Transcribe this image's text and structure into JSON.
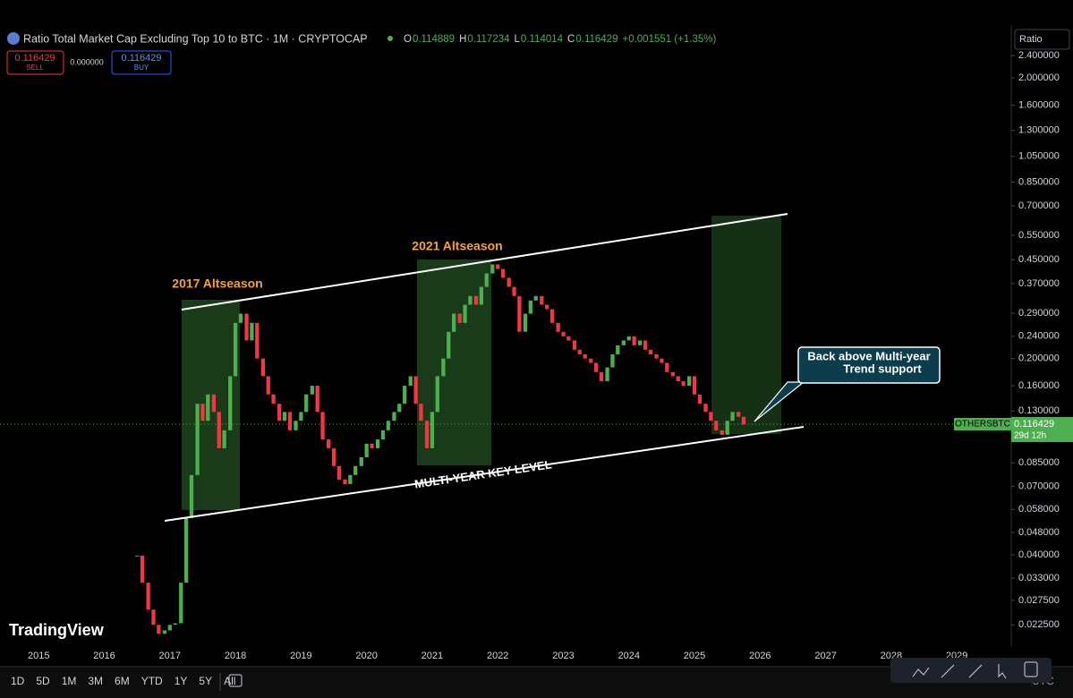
{
  "header": {
    "title": "Ratio Total Market Cap Excluding Top 10 to BTC · 1M · CRYPTOCAP",
    "ohlc": [
      {
        "label": "O",
        "value": "0.114889"
      },
      {
        "label": "H",
        "value": "0.117234"
      },
      {
        "label": "L",
        "value": "0.114014"
      },
      {
        "label": "C",
        "value": "0.116429"
      }
    ],
    "change": "+0.001551 (+1.35%)",
    "sell": {
      "price": "0.116429",
      "label": "SELL"
    },
    "spread": "0.000000",
    "buy": {
      "price": "0.116429",
      "label": "BUY"
    },
    "scale_button": "Ratio"
  },
  "chart_data": {
    "type": "candlestick",
    "x": [
      2016.5,
      2016.58,
      2016.67,
      2016.75,
      2016.83,
      2016.92,
      2017.0,
      2017.08,
      2017.17,
      2017.25,
      2017.33,
      2017.42,
      2017.5,
      2017.58,
      2017.67,
      2017.75,
      2017.83,
      2017.92,
      2018.0,
      2018.08,
      2018.17,
      2018.25,
      2018.33,
      2018.42,
      2018.5,
      2018.58,
      2018.67,
      2018.75,
      2018.83,
      2018.92,
      2019.0,
      2019.08,
      2019.17,
      2019.25,
      2019.33,
      2019.42,
      2019.5,
      2019.58,
      2019.67,
      2019.75,
      2019.83,
      2019.92,
      2020.0,
      2020.08,
      2020.17,
      2020.25,
      2020.33,
      2020.42,
      2020.5,
      2020.58,
      2020.67,
      2020.75,
      2020.83,
      2020.92,
      2021.0,
      2021.08,
      2021.17,
      2021.25,
      2021.33,
      2021.42,
      2021.5,
      2021.58,
      2021.67,
      2021.75,
      2021.83,
      2021.92,
      2022.0,
      2022.08,
      2022.17,
      2022.25,
      2022.33,
      2022.42,
      2022.5,
      2022.58,
      2022.67,
      2022.75,
      2022.83,
      2022.92,
      2023.0,
      2023.08,
      2023.17,
      2023.25,
      2023.33,
      2023.42,
      2023.5,
      2023.58,
      2023.67,
      2023.75,
      2023.83,
      2023.92,
      2024.0,
      2024.08,
      2024.17,
      2024.25,
      2024.33,
      2024.42,
      2024.5,
      2024.58,
      2024.67,
      2024.75,
      2024.83,
      2024.92,
      2025.0,
      2025.08,
      2025.17,
      2025.25,
      2025.33,
      2025.42,
      2025.5,
      2025.58,
      2025.67,
      2025.75
    ],
    "values": [
      0.0397,
      0.0318,
      0.0255,
      0.0225,
      0.0209,
      0.0215,
      0.0225,
      0.0228,
      0.0318,
      0.054,
      0.0769,
      0.138,
      0.12,
      0.149,
      0.129,
      0.0958,
      0.111,
      0.173,
      0.268,
      0.289,
      0.232,
      0.268,
      0.2,
      0.173,
      0.149,
      0.138,
      0.12,
      0.129,
      0.111,
      0.12,
      0.129,
      0.149,
      0.16,
      0.129,
      0.103,
      0.0958,
      0.0828,
      0.0741,
      0.0714,
      0.0769,
      0.0828,
      0.089,
      0.0995,
      0.0958,
      0.103,
      0.111,
      0.12,
      0.129,
      0.138,
      0.16,
      0.173,
      0.138,
      0.12,
      0.0958,
      0.129,
      0.173,
      0.2,
      0.249,
      0.289,
      0.268,
      0.311,
      0.334,
      0.311,
      0.36,
      0.402,
      0.433,
      0.417,
      0.388,
      0.36,
      0.334,
      0.249,
      0.289,
      0.322,
      0.334,
      0.311,
      0.3,
      0.268,
      0.249,
      0.24,
      0.232,
      0.215,
      0.207,
      0.2,
      0.193,
      0.179,
      0.166,
      0.186,
      0.207,
      0.223,
      0.232,
      0.24,
      0.223,
      0.232,
      0.215,
      0.207,
      0.2,
      0.193,
      0.179,
      0.173,
      0.166,
      0.16,
      0.173,
      0.149,
      0.138,
      0.129,
      0.12,
      0.111,
      0.107,
      0.12,
      0.129,
      0.124,
      0.116429
    ],
    "up_color": "#4caf50",
    "down_color": "#f23645",
    "xlim": [
      2014.41,
      2029.83
    ],
    "xticks": [
      2015,
      2016,
      2017,
      2018,
      2019,
      2020,
      2021,
      2022,
      2023,
      2024,
      2025,
      2026,
      2027,
      2028,
      2029
    ],
    "ylim": [
      0.0189,
      3.04
    ],
    "log_scale": true,
    "yticks": [
      {
        "value": 2.4,
        "label": "2.400000"
      },
      {
        "value": 2.0,
        "label": "2.000000"
      },
      {
        "value": 1.6,
        "label": "1.600000"
      },
      {
        "value": 1.3,
        "label": "1.300000"
      },
      {
        "value": 1.05,
        "label": "1.050000"
      },
      {
        "value": 0.85,
        "label": "0.850000"
      },
      {
        "value": 0.7,
        "label": "0.700000"
      },
      {
        "value": 0.55,
        "label": "0.550000"
      },
      {
        "value": 0.45,
        "label": "0.450000"
      },
      {
        "value": 0.37,
        "label": "0.370000"
      },
      {
        "value": 0.29,
        "label": "0.290000"
      },
      {
        "value": 0.24,
        "label": "0.240000"
      },
      {
        "value": 0.2,
        "label": "0.200000"
      },
      {
        "value": 0.16,
        "label": "0.160000"
      },
      {
        "value": 0.13,
        "label": "0.130000"
      },
      {
        "value": 0.085,
        "label": "0.085000"
      },
      {
        "value": 0.07,
        "label": "0.070000"
      },
      {
        "value": 0.058,
        "label": "0.058000"
      },
      {
        "value": 0.048,
        "label": "0.048000"
      },
      {
        "value": 0.04,
        "label": "0.040000"
      },
      {
        "value": 0.033,
        "label": "0.033000"
      },
      {
        "value": 0.0275,
        "label": "0.027500"
      },
      {
        "value": 0.0225,
        "label": "0.022500"
      }
    ],
    "grid": false,
    "price_label": {
      "symbol": "OTHERSBTC",
      "value": "0.116429",
      "countdown": "29d 12h"
    },
    "annotations": {
      "season_2017": "2017 Altseason",
      "season_2021": "2021 Altseason",
      "key_level": "MULTI-YEAR KEY LEVEL",
      "callout": [
        "Back above Multi-year",
        "Trend support"
      ]
    },
    "timezone": "UTC"
  },
  "toolbar": {
    "ranges": [
      "1D",
      "5D",
      "1M",
      "3M",
      "6M",
      "YTD",
      "1Y",
      "5Y",
      "All"
    ]
  },
  "brand": "TradingView"
}
